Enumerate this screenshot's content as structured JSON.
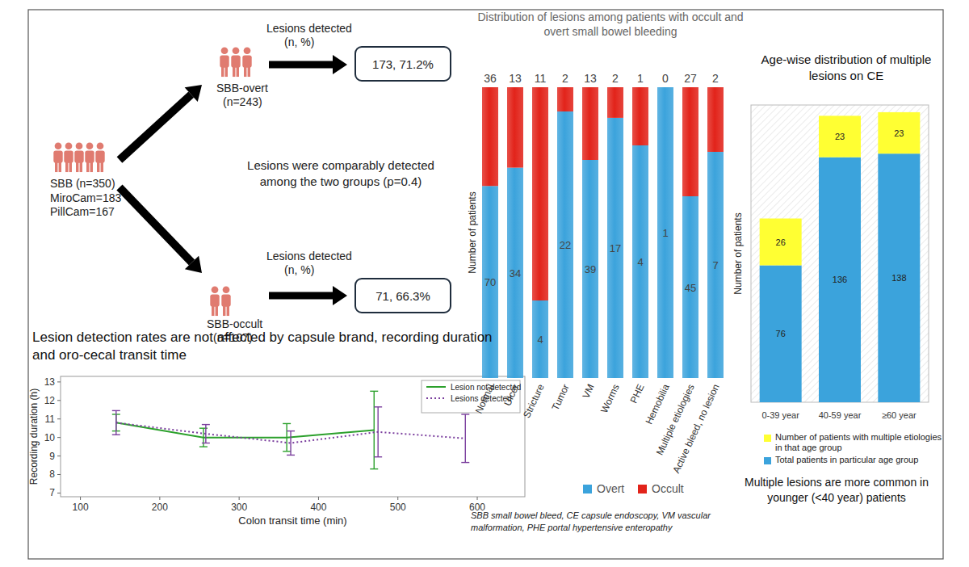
{
  "diagram": {
    "root": {
      "label": "SBB (n=350)",
      "details": [
        "MiroCam=183",
        "PillCam=167"
      ]
    },
    "branches": [
      {
        "label": "SBB-overt",
        "count": "(n=243)",
        "result_title": "Lesions detected",
        "result_unit": "(n, %)",
        "result": "173, 71.2%"
      },
      {
        "label": "SBB-occult",
        "count": "(n=107)",
        "result_title": "Lesions detected",
        "result_unit": "(n, %)",
        "result": "71, 66.3%"
      }
    ],
    "comparison": "Lesions were comparably detected among the two groups (p=0.4)"
  },
  "chart_data": [
    {
      "type": "line",
      "title": "Lesion detection rates are not affected by capsule brand, recording duration and oro-cecal transit time",
      "x_label": "Colon transit time (min)",
      "y_label": "Recording duration (h)",
      "xlim": [
        75,
        660
      ],
      "xticks": [
        100,
        200,
        300,
        400,
        500,
        600
      ],
      "ylim": [
        6.8,
        13.3
      ],
      "yticks": [
        7,
        8,
        9,
        10,
        11,
        12,
        13
      ],
      "legend": "upper right",
      "series": [
        {
          "name": "Lesion not detected",
          "color": "#2ca02c",
          "line_style": "solid",
          "x": [
            145,
            255,
            360,
            470
          ],
          "values": [
            10.8,
            10.0,
            10.0,
            10.4
          ],
          "errors": [
            0.45,
            0.5,
            0.75,
            2.1
          ]
        },
        {
          "name": "Lesions detected",
          "color": "#7b3f9e",
          "line_style": "dotted",
          "x": [
            145,
            258,
            365,
            475,
            585
          ],
          "values": [
            10.8,
            10.2,
            9.7,
            10.3,
            9.95
          ],
          "errors": [
            0.65,
            0.5,
            0.65,
            1.35,
            1.3
          ]
        }
      ]
    },
    {
      "type": "bar",
      "title": "Distribution of lesions among patients with occult and overt small bowel bleeding",
      "y_label": "Number of patients",
      "categories": [
        "Normal",
        "Ulcer",
        "Stricture",
        "Tumor",
        "VM",
        "Worms",
        "PHE",
        "Hemobilia",
        "Multiple etiologies",
        "Active bleed, no lesion"
      ],
      "stacked": true,
      "data_labels": true,
      "tick_labels": "x",
      "legend": "bottom",
      "series": [
        {
          "name": "Overt",
          "color": "#3ba3dc",
          "values": [
            70,
            34,
            4,
            22,
            39,
            17,
            4,
            1,
            45,
            7
          ]
        },
        {
          "name": "Occult",
          "color": "#e2231a",
          "values": [
            36,
            13,
            11,
            2,
            13,
            2,
            1,
            0,
            27,
            2
          ]
        }
      ],
      "annotations": [
        "SBB small bowel bleed, CE capsule endoscopy, VM vascular malformation, PHE portal hypertensive enteropathy"
      ]
    },
    {
      "type": "bar",
      "title": "Age-wise distribution of multiple lesions on CE",
      "y_label": "Number of patients",
      "categories": [
        "0-39 year",
        "40-59 year",
        "≥60 year"
      ],
      "ylim": [
        0,
        165
      ],
      "stacked": true,
      "data_labels": true,
      "tick_labels": "x",
      "legend": "bottom",
      "series": [
        {
          "name": "Total patients in particular age group",
          "color": "#3ba3dc",
          "values": [
            76,
            136,
            138
          ]
        },
        {
          "name": "Number of patients with multiple etiologies in that age group",
          "color": "#ffff33",
          "values": [
            26,
            23,
            23
          ]
        }
      ],
      "annotations": [
        "Multiple lesions are more common in younger (<40 year) patients"
      ]
    }
  ]
}
